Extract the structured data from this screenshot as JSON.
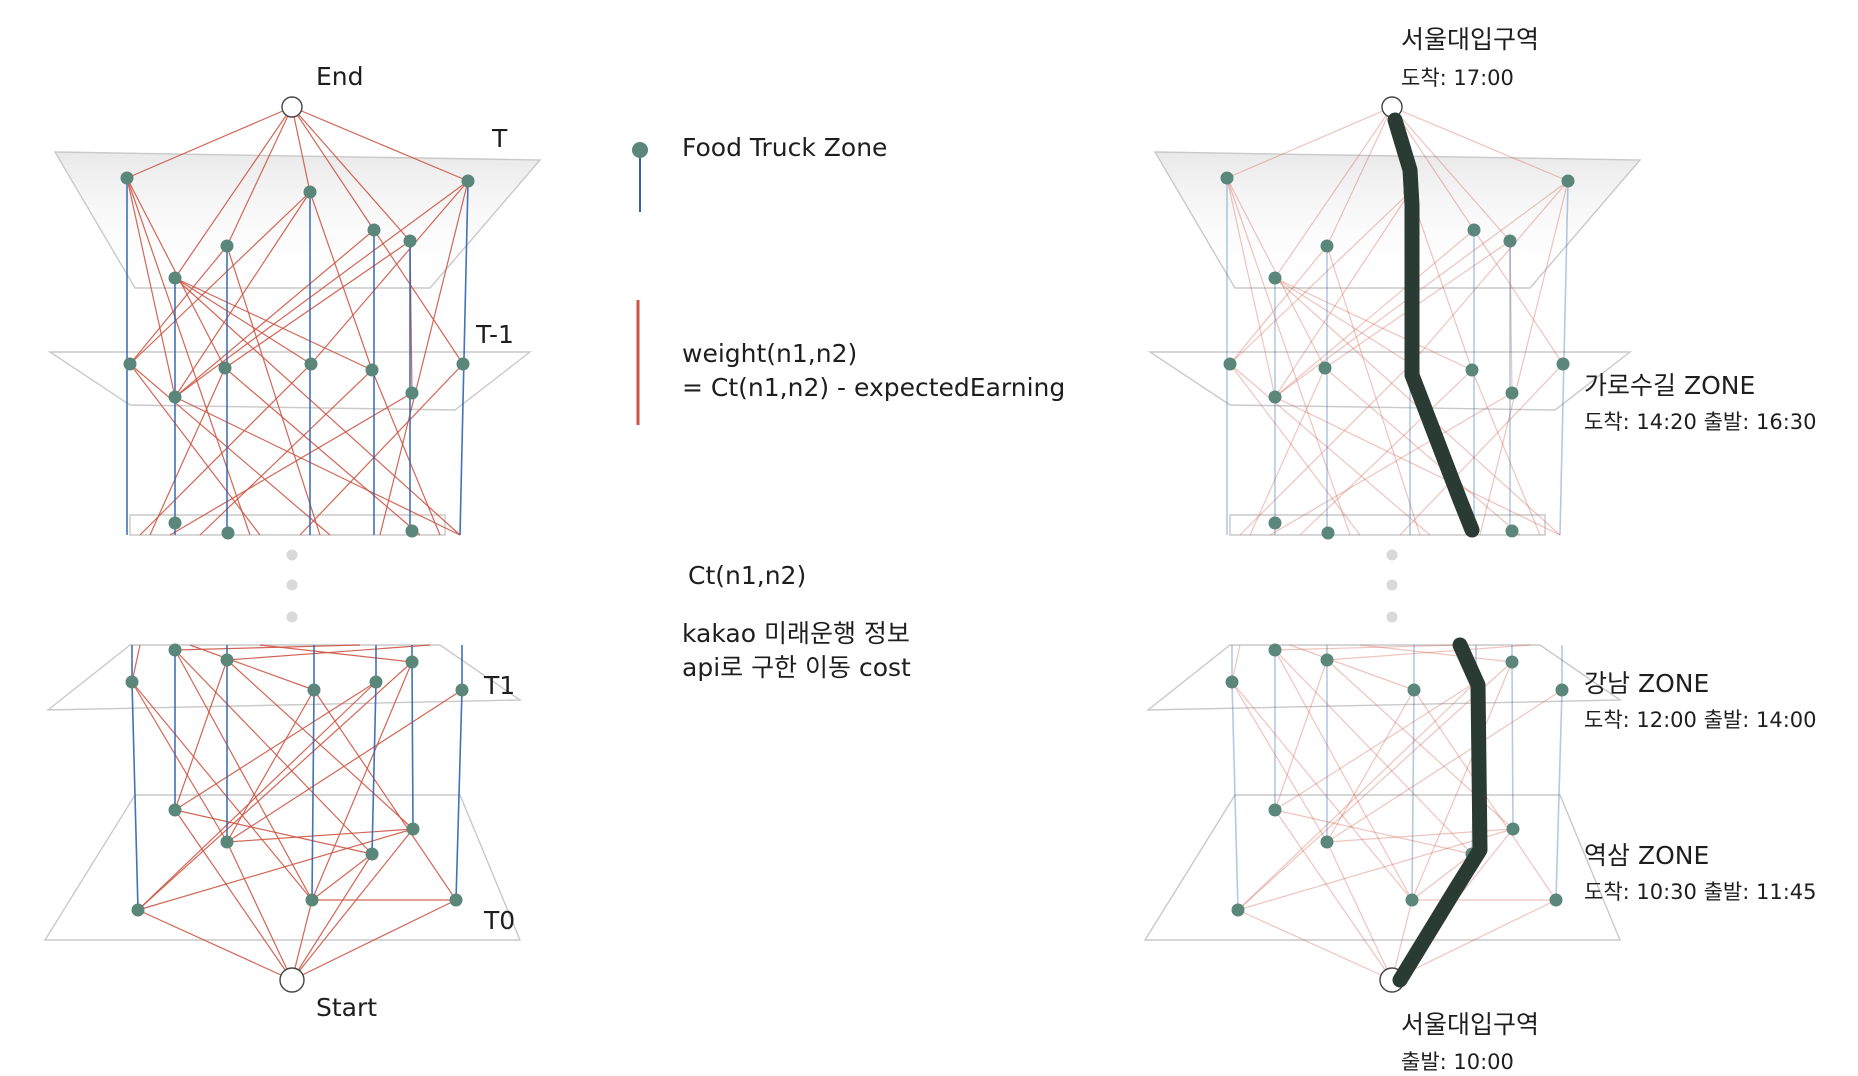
{
  "colors": {
    "node": "#5b877b",
    "endpoint_fill": "#ffffff",
    "blue_edge": "#2e63b0",
    "red_edge": "#cd5544",
    "path": "#2a3b33",
    "plane": "#c9c9c9",
    "dots": "#d9d9d9"
  },
  "left_graph": {
    "end_label": "End",
    "start_label": "Start",
    "layers": [
      "T",
      "T-1",
      "T1",
      "T0"
    ]
  },
  "legend": {
    "node_label": "Food Truck Zone",
    "weight_label_line1": "weight(n1,n2)",
    "weight_label_line2": "= Ct(n1,n2) - expectedEarning",
    "cost_title": "Ct(n1,n2)",
    "cost_desc_line1": "kakao 미래운행 정보",
    "cost_desc_line2": "api로 구한 이동 cost"
  },
  "right_graph": {
    "end": {
      "name": "서울대입구역",
      "time": "도착: 17:00"
    },
    "start": {
      "name": "서울대입구역",
      "time": "출발: 10:00"
    },
    "stops": [
      {
        "name": "가로수길 ZONE",
        "time": "도착: 14:20 출발: 16:30"
      },
      {
        "name": "강남 ZONE",
        "time": "도착: 12:00 출발: 14:00"
      },
      {
        "name": "역삼 ZONE",
        "time": "도착: 10:30 출발: 11:45"
      }
    ]
  }
}
